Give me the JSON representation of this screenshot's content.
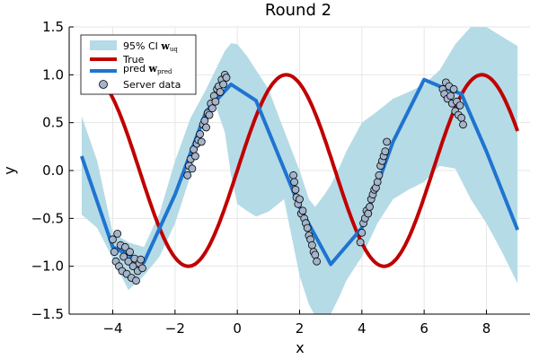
{
  "chart_data": {
    "type": "line",
    "title": "Round 2",
    "xlabel": "x",
    "ylabel": "y",
    "xlim": [
      -5.4,
      9.4
    ],
    "ylim": [
      -1.5,
      1.5
    ],
    "xticks": [
      -4,
      -2,
      0,
      2,
      4,
      6,
      8
    ],
    "xtick_labels": [
      "−4",
      "−2",
      "0",
      "2",
      "4",
      "6",
      "8"
    ],
    "yticks": [
      -1.5,
      -1.0,
      -0.5,
      0.0,
      0.5,
      1.0,
      1.5
    ],
    "ytick_labels": [
      "−1.5",
      "−1.0",
      "−0.5",
      "0.0",
      "0.5",
      "1.0",
      "1.5"
    ],
    "grid": true,
    "legend_position": "top-left",
    "legend": {
      "ci": {
        "prefix": "95% CI ",
        "w": "w",
        "sub": "uq"
      },
      "true": {
        "text": "True"
      },
      "pred": {
        "prefix": "pred ",
        "w": "w",
        "sub": "pred"
      },
      "server": {
        "text": "Server data"
      }
    },
    "colors": {
      "ci_band": "#b5dbe6",
      "true_line": "#c00000",
      "pred_line": "#1f74d0",
      "marker_fill": "#a3b4cb",
      "marker_edge": "#000000",
      "grid": "#e6e6e6",
      "axis": "#000000"
    },
    "true_function": "sin(x)",
    "true_x_range": [
      -5,
      9
    ],
    "series": [
      {
        "name": "pred w_pred",
        "kind": "line",
        "x": [
          -5.0,
          -4.0,
          -3.0,
          -2.0,
          -1.0,
          -0.2,
          0.6,
          2.0,
          3.0,
          4.0,
          5.0,
          6.0,
          6.5,
          7.2,
          8.0,
          9.0
        ],
        "y": [
          0.15,
          -0.8,
          -0.96,
          -0.25,
          0.62,
          0.9,
          0.73,
          -0.38,
          -0.98,
          -0.6,
          0.3,
          0.95,
          0.88,
          0.8,
          0.2,
          -0.62
        ]
      },
      {
        "name": "95% CI w_uq",
        "kind": "band",
        "x": [
          -5.0,
          -4.5,
          -4.0,
          -3.5,
          -3.0,
          -2.5,
          -2.0,
          -1.5,
          -1.0,
          -0.7,
          -0.4,
          -0.2,
          0.0,
          0.3,
          0.6,
          1.0,
          1.5,
          2.0,
          2.3,
          2.5,
          2.8,
          3.0,
          3.3,
          3.5,
          4.0,
          4.5,
          5.0,
          5.5,
          6.0,
          6.5,
          7.0,
          7.5,
          8.0,
          8.5,
          9.0
        ],
        "lower": [
          -0.46,
          -0.6,
          -0.92,
          -1.25,
          -1.1,
          -0.9,
          -0.55,
          -0.05,
          0.55,
          0.68,
          0.4,
          -0.05,
          -0.35,
          -0.42,
          -0.48,
          -0.43,
          -0.3,
          -1.1,
          -1.4,
          -1.52,
          -1.5,
          -1.5,
          -1.3,
          -1.15,
          -0.9,
          -0.55,
          -0.3,
          -0.2,
          -0.12,
          0.05,
          0.02,
          -0.3,
          -0.55,
          -0.85,
          -1.18
        ],
        "upper": [
          0.57,
          0.1,
          -0.65,
          -0.75,
          -0.8,
          -0.45,
          0.1,
          0.55,
          0.85,
          1.05,
          1.25,
          1.33,
          1.32,
          1.2,
          1.05,
          0.85,
          0.42,
          0.0,
          -0.3,
          -0.38,
          -0.25,
          -0.15,
          0.05,
          0.2,
          0.5,
          0.62,
          0.75,
          0.82,
          0.9,
          1.05,
          1.32,
          1.5,
          1.5,
          1.4,
          1.3
        ]
      },
      {
        "name": "Server data",
        "kind": "scatter",
        "points": [
          [
            -4.0,
            -0.72
          ],
          [
            -3.95,
            -0.85
          ],
          [
            -3.9,
            -0.95
          ],
          [
            -3.85,
            -0.66
          ],
          [
            -3.8,
            -1.0
          ],
          [
            -3.75,
            -0.78
          ],
          [
            -3.7,
            -1.05
          ],
          [
            -3.65,
            -0.9
          ],
          [
            -3.6,
            -0.8
          ],
          [
            -3.55,
            -1.08
          ],
          [
            -3.5,
            -0.95
          ],
          [
            -3.45,
            -0.85
          ],
          [
            -3.4,
            -1.12
          ],
          [
            -3.35,
            -1.0
          ],
          [
            -3.3,
            -0.92
          ],
          [
            -3.25,
            -1.15
          ],
          [
            -3.2,
            -1.05
          ],
          [
            -3.15,
            -0.97
          ],
          [
            -3.1,
            -0.93
          ],
          [
            -3.05,
            -1.02
          ],
          [
            -1.6,
            -0.05
          ],
          [
            -1.55,
            0.05
          ],
          [
            -1.5,
            0.12
          ],
          [
            -1.45,
            0.02
          ],
          [
            -1.4,
            0.22
          ],
          [
            -1.35,
            0.15
          ],
          [
            -1.3,
            0.28
          ],
          [
            -1.25,
            0.32
          ],
          [
            -1.2,
            0.38
          ],
          [
            -1.15,
            0.3
          ],
          [
            -1.1,
            0.48
          ],
          [
            -1.05,
            0.52
          ],
          [
            -1.0,
            0.45
          ],
          [
            -0.95,
            0.6
          ],
          [
            -0.9,
            0.58
          ],
          [
            -0.85,
            0.7
          ],
          [
            -0.8,
            0.65
          ],
          [
            -0.75,
            0.78
          ],
          [
            -0.7,
            0.72
          ],
          [
            -0.65,
            0.85
          ],
          [
            -0.6,
            0.88
          ],
          [
            -0.55,
            0.82
          ],
          [
            -0.5,
            0.95
          ],
          [
            -0.45,
            0.9
          ],
          [
            -0.4,
            1.0
          ],
          [
            -0.35,
            0.97
          ],
          [
            1.8,
            -0.05
          ],
          [
            1.83,
            -0.12
          ],
          [
            1.87,
            -0.2
          ],
          [
            1.9,
            -0.28
          ],
          [
            1.95,
            -0.35
          ],
          [
            2.0,
            -0.3
          ],
          [
            2.05,
            -0.45
          ],
          [
            2.1,
            -0.42
          ],
          [
            2.15,
            -0.5
          ],
          [
            2.2,
            -0.55
          ],
          [
            2.25,
            -0.6
          ],
          [
            2.3,
            -0.68
          ],
          [
            2.35,
            -0.72
          ],
          [
            2.4,
            -0.78
          ],
          [
            2.45,
            -0.85
          ],
          [
            2.5,
            -0.88
          ],
          [
            2.55,
            -0.95
          ],
          [
            3.95,
            -0.75
          ],
          [
            4.0,
            -0.65
          ],
          [
            4.05,
            -0.55
          ],
          [
            4.1,
            -0.5
          ],
          [
            4.15,
            -0.42
          ],
          [
            4.2,
            -0.45
          ],
          [
            4.25,
            -0.38
          ],
          [
            4.3,
            -0.3
          ],
          [
            4.35,
            -0.25
          ],
          [
            4.4,
            -0.2
          ],
          [
            4.45,
            -0.18
          ],
          [
            4.5,
            -0.12
          ],
          [
            4.55,
            -0.05
          ],
          [
            4.6,
            0.05
          ],
          [
            4.65,
            0.1
          ],
          [
            4.7,
            0.15
          ],
          [
            4.75,
            0.2
          ],
          [
            4.8,
            0.3
          ],
          [
            6.6,
            0.85
          ],
          [
            6.65,
            0.8
          ],
          [
            6.7,
            0.92
          ],
          [
            6.75,
            0.75
          ],
          [
            6.8,
            0.88
          ],
          [
            6.85,
            0.78
          ],
          [
            6.9,
            0.7
          ],
          [
            6.95,
            0.85
          ],
          [
            7.0,
            0.62
          ],
          [
            7.05,
            0.72
          ],
          [
            7.1,
            0.58
          ],
          [
            7.15,
            0.68
          ],
          [
            7.2,
            0.55
          ],
          [
            7.25,
            0.48
          ]
        ]
      }
    ]
  }
}
